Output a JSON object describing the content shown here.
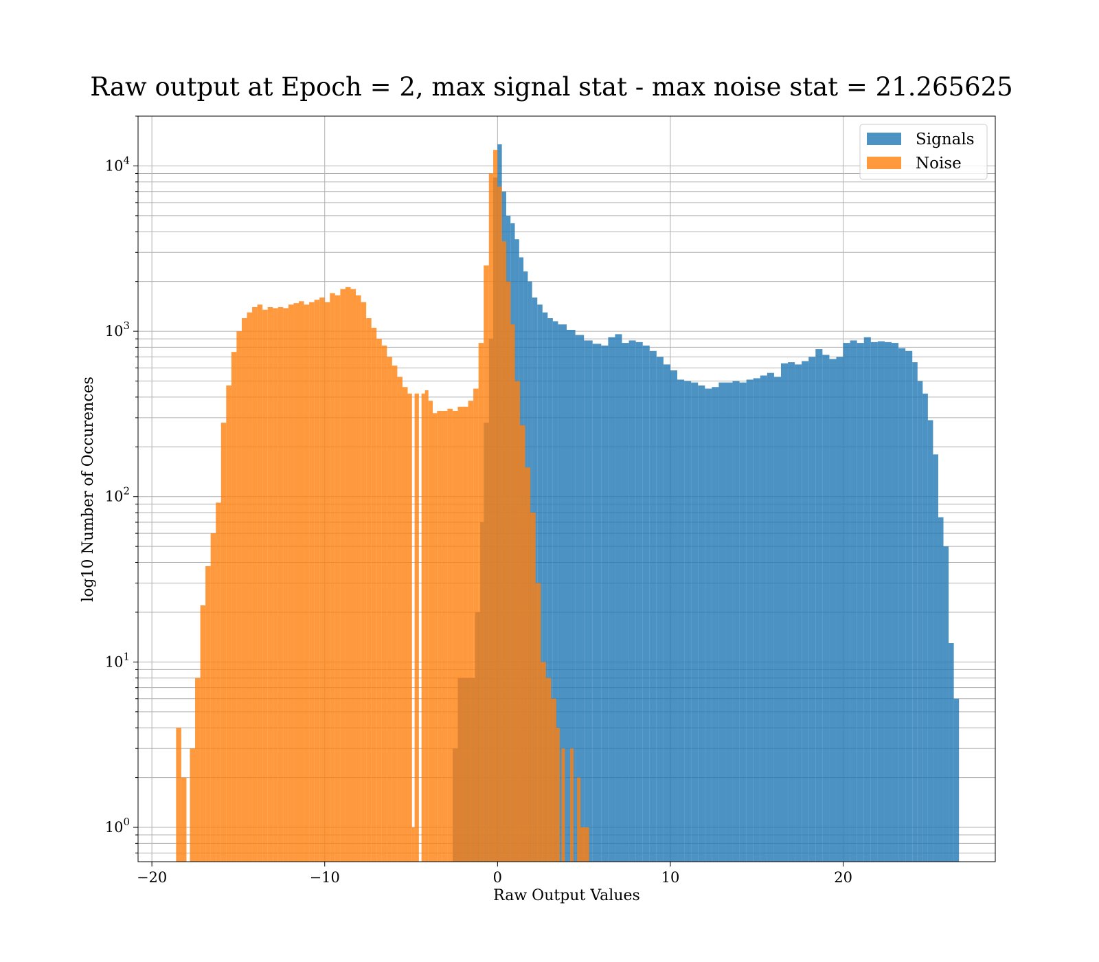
{
  "chart_data": {
    "type": "bar",
    "subtype": "overlaid histogram",
    "title": "Raw output at Epoch = 2, max signal stat - max noise stat = 21.265625",
    "xlabel": "Raw Output Values",
    "ylabel": "log10 Number of Occurences",
    "xlim": [
      -20.8,
      28.8
    ],
    "ylim": [
      0.62,
      20000
    ],
    "yscale": "log",
    "grid": true,
    "legend_position": "upper right",
    "x_ticks": [
      {
        "value": -20,
        "label": "−20"
      },
      {
        "value": -10,
        "label": "−10"
      },
      {
        "value": 0,
        "label": "0"
      },
      {
        "value": 10,
        "label": "10"
      },
      {
        "value": 20,
        "label": "20"
      }
    ],
    "y_ticks": [
      {
        "value": 1,
        "base": "10",
        "exp": "0"
      },
      {
        "value": 10,
        "base": "10",
        "exp": "1"
      },
      {
        "value": 100,
        "base": "10",
        "exp": "2"
      },
      {
        "value": 1000,
        "base": "10",
        "exp": "3"
      },
      {
        "value": 10000,
        "base": "10",
        "exp": "4"
      }
    ],
    "series": [
      {
        "name": "Signals",
        "color": "#1f77b4",
        "opacity": 0.8,
        "bins": [
          [
            -2.6,
            -2.3,
            3
          ],
          [
            -2.3,
            -2.0,
            8
          ],
          [
            -2.0,
            -1.6,
            8
          ],
          [
            -1.6,
            -1.3,
            8
          ],
          [
            -1.3,
            -1.0,
            20
          ],
          [
            -1.0,
            -0.8,
            70
          ],
          [
            -0.8,
            -0.5,
            280
          ],
          [
            -0.5,
            -0.25,
            900
          ],
          [
            -0.25,
            0.0,
            8500
          ],
          [
            0.0,
            0.25,
            13500
          ],
          [
            0.25,
            0.5,
            7000
          ],
          [
            0.5,
            0.75,
            5000
          ],
          [
            0.75,
            1.0,
            4500
          ],
          [
            1.0,
            1.25,
            3600
          ],
          [
            1.25,
            1.5,
            2800
          ],
          [
            1.5,
            1.75,
            2300
          ],
          [
            1.75,
            2.0,
            2000
          ],
          [
            2.0,
            2.3,
            1600
          ],
          [
            2.3,
            2.6,
            1450
          ],
          [
            2.6,
            2.9,
            1300
          ],
          [
            2.9,
            3.2,
            1200
          ],
          [
            3.2,
            3.5,
            1150
          ],
          [
            3.5,
            4.0,
            1100
          ],
          [
            4.0,
            4.5,
            1020
          ],
          [
            4.5,
            5.0,
            950
          ],
          [
            5.0,
            5.5,
            880
          ],
          [
            5.5,
            6.0,
            840
          ],
          [
            6.0,
            6.4,
            820
          ],
          [
            6.4,
            6.8,
            920
          ],
          [
            6.8,
            7.2,
            960
          ],
          [
            7.2,
            7.6,
            850
          ],
          [
            7.6,
            8.0,
            880
          ],
          [
            8.0,
            8.4,
            860
          ],
          [
            8.4,
            8.8,
            820
          ],
          [
            8.8,
            9.2,
            760
          ],
          [
            9.2,
            9.6,
            700
          ],
          [
            9.6,
            10.0,
            630
          ],
          [
            10.0,
            10.4,
            580
          ],
          [
            10.4,
            10.8,
            510
          ],
          [
            10.8,
            11.2,
            500
          ],
          [
            11.2,
            11.6,
            490
          ],
          [
            11.6,
            12.0,
            470
          ],
          [
            12.0,
            12.4,
            450
          ],
          [
            12.4,
            12.8,
            460
          ],
          [
            12.8,
            13.2,
            490
          ],
          [
            13.2,
            13.6,
            490
          ],
          [
            13.6,
            14.0,
            500
          ],
          [
            14.0,
            14.4,
            490
          ],
          [
            14.4,
            14.8,
            510
          ],
          [
            14.8,
            15.2,
            520
          ],
          [
            15.2,
            15.6,
            540
          ],
          [
            15.6,
            16.0,
            560
          ],
          [
            16.0,
            16.4,
            530
          ],
          [
            16.4,
            16.8,
            640
          ],
          [
            16.8,
            17.2,
            650
          ],
          [
            17.2,
            17.6,
            630
          ],
          [
            17.6,
            18.0,
            660
          ],
          [
            18.0,
            18.4,
            700
          ],
          [
            18.4,
            18.8,
            780
          ],
          [
            18.8,
            19.2,
            720
          ],
          [
            19.2,
            19.6,
            680
          ],
          [
            19.6,
            20.0,
            700
          ],
          [
            20.0,
            20.4,
            850
          ],
          [
            20.4,
            20.8,
            880
          ],
          [
            20.8,
            21.2,
            850
          ],
          [
            21.2,
            21.6,
            920
          ],
          [
            21.6,
            22.0,
            860
          ],
          [
            22.0,
            22.4,
            870
          ],
          [
            22.4,
            22.8,
            860
          ],
          [
            22.8,
            23.2,
            850
          ],
          [
            23.2,
            23.6,
            790
          ],
          [
            23.6,
            24.0,
            760
          ],
          [
            24.0,
            24.3,
            650
          ],
          [
            24.3,
            24.6,
            500
          ],
          [
            24.6,
            24.9,
            420
          ],
          [
            24.9,
            25.2,
            290
          ],
          [
            25.2,
            25.5,
            180
          ],
          [
            25.5,
            25.8,
            75
          ],
          [
            25.8,
            26.1,
            50
          ],
          [
            26.1,
            26.4,
            13
          ],
          [
            26.4,
            26.7,
            6
          ]
        ]
      },
      {
        "name": "Noise",
        "color": "#ff7f0e",
        "opacity": 0.8,
        "bins": [
          [
            -18.6,
            -18.3,
            4
          ],
          [
            -18.3,
            -18.0,
            2
          ],
          [
            -17.8,
            -17.5,
            3
          ],
          [
            -17.5,
            -17.2,
            8
          ],
          [
            -17.2,
            -16.9,
            22
          ],
          [
            -16.9,
            -16.6,
            38
          ],
          [
            -16.6,
            -16.3,
            60
          ],
          [
            -16.3,
            -16.0,
            92
          ],
          [
            -16.0,
            -15.7,
            280
          ],
          [
            -15.7,
            -15.4,
            470
          ],
          [
            -15.4,
            -15.1,
            750
          ],
          [
            -15.1,
            -14.8,
            1000
          ],
          [
            -14.8,
            -14.5,
            1200
          ],
          [
            -14.5,
            -14.2,
            1300
          ],
          [
            -14.2,
            -13.9,
            1400
          ],
          [
            -13.9,
            -13.6,
            1450
          ],
          [
            -13.6,
            -13.3,
            1350
          ],
          [
            -13.3,
            -13.0,
            1400
          ],
          [
            -13.0,
            -12.7,
            1380
          ],
          [
            -12.7,
            -12.4,
            1400
          ],
          [
            -12.4,
            -12.1,
            1380
          ],
          [
            -12.1,
            -11.8,
            1450
          ],
          [
            -11.8,
            -11.5,
            1480
          ],
          [
            -11.5,
            -11.2,
            1520
          ],
          [
            -11.2,
            -10.9,
            1450
          ],
          [
            -10.9,
            -10.6,
            1500
          ],
          [
            -10.6,
            -10.3,
            1550
          ],
          [
            -10.3,
            -10.0,
            1600
          ],
          [
            -10.0,
            -9.7,
            1500
          ],
          [
            -9.7,
            -9.4,
            1700
          ],
          [
            -9.4,
            -9.1,
            1650
          ],
          [
            -9.1,
            -8.8,
            1800
          ],
          [
            -8.8,
            -8.5,
            1850
          ],
          [
            -8.5,
            -8.2,
            1800
          ],
          [
            -8.2,
            -7.9,
            1650
          ],
          [
            -7.9,
            -7.6,
            1500
          ],
          [
            -7.6,
            -7.3,
            1200
          ],
          [
            -7.3,
            -7.0,
            1050
          ],
          [
            -7.0,
            -6.7,
            900
          ],
          [
            -6.7,
            -6.4,
            820
          ],
          [
            -6.4,
            -6.1,
            700
          ],
          [
            -6.1,
            -5.8,
            620
          ],
          [
            -5.8,
            -5.5,
            530
          ],
          [
            -5.5,
            -5.2,
            460
          ],
          [
            -5.2,
            -4.95,
            420
          ],
          [
            -4.95,
            -4.8,
            1
          ],
          [
            -4.8,
            -4.55,
            420
          ],
          [
            -4.4,
            -4.2,
            420
          ],
          [
            -4.2,
            -4.0,
            440
          ],
          [
            -4.0,
            -3.75,
            380
          ],
          [
            -3.75,
            -3.5,
            320
          ],
          [
            -3.5,
            -3.2,
            330
          ],
          [
            -3.2,
            -2.9,
            330
          ],
          [
            -2.9,
            -2.6,
            340
          ],
          [
            -2.6,
            -2.3,
            330
          ],
          [
            -2.3,
            -2.0,
            350
          ],
          [
            -2.0,
            -1.7,
            350
          ],
          [
            -1.7,
            -1.4,
            380
          ],
          [
            -1.4,
            -1.1,
            450
          ],
          [
            -1.1,
            -0.8,
            850
          ],
          [
            -0.8,
            -0.5,
            2500
          ],
          [
            -0.5,
            -0.25,
            9000
          ],
          [
            -0.25,
            0.0,
            12500
          ],
          [
            0.0,
            0.25,
            7500
          ],
          [
            0.25,
            0.5,
            3500
          ],
          [
            0.5,
            0.75,
            2000
          ],
          [
            0.75,
            1.0,
            1100
          ],
          [
            1.0,
            1.3,
            500
          ],
          [
            1.3,
            1.6,
            270
          ],
          [
            1.6,
            1.9,
            150
          ],
          [
            1.9,
            2.2,
            80
          ],
          [
            2.2,
            2.5,
            30
          ],
          [
            2.5,
            2.8,
            10
          ],
          [
            2.8,
            3.1,
            8
          ],
          [
            3.1,
            3.4,
            6
          ],
          [
            3.4,
            3.6,
            4
          ],
          [
            3.7,
            3.9,
            3
          ],
          [
            4.2,
            4.4,
            3
          ],
          [
            4.6,
            4.8,
            2
          ],
          [
            4.8,
            5.3,
            1
          ]
        ]
      }
    ]
  }
}
